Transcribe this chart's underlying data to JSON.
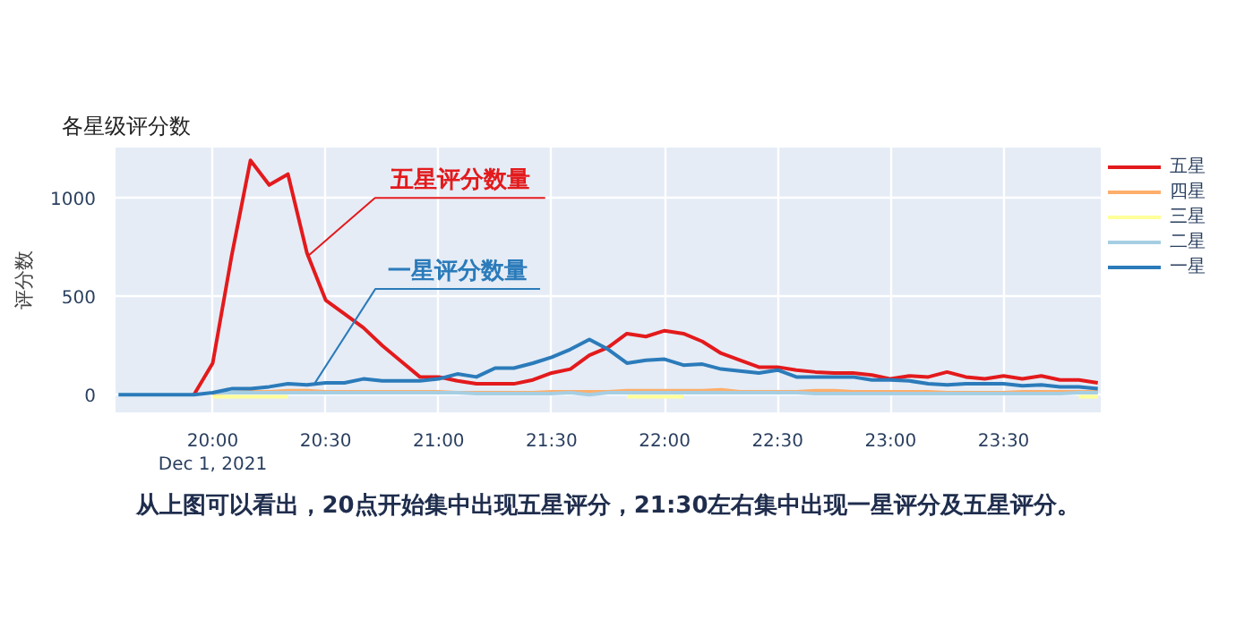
{
  "chart_data": {
    "type": "line",
    "title": "各星级评分数",
    "ylabel": "评分数",
    "xlim": [
      19.57,
      23.93
    ],
    "ylim": [
      -90,
      1255
    ],
    "xticks": [
      {
        "value": 20,
        "label": "20:00\nDec 1, 2021"
      },
      {
        "value": 20.5,
        "label": "20:30"
      },
      {
        "value": 21,
        "label": "21:00"
      },
      {
        "value": 21.5,
        "label": "21:30"
      },
      {
        "value": 22,
        "label": "22:00"
      },
      {
        "value": 22.5,
        "label": "22:30"
      },
      {
        "value": 23,
        "label": "23:00"
      },
      {
        "value": 23.5,
        "label": "23:30"
      }
    ],
    "yticks": [
      0,
      500,
      1000
    ],
    "grid": true,
    "legend": "top right",
    "marker": "none",
    "line_style": "solid",
    "x": [
      19.583,
      19.667,
      19.75,
      19.833,
      19.917,
      20.0,
      20.083,
      20.167,
      20.25,
      20.333,
      20.417,
      20.5,
      20.583,
      20.667,
      20.75,
      20.833,
      20.917,
      21.0,
      21.083,
      21.167,
      21.25,
      21.333,
      21.417,
      21.5,
      21.583,
      21.667,
      21.75,
      21.833,
      21.917,
      22.0,
      22.083,
      22.167,
      22.25,
      22.333,
      22.417,
      22.5,
      22.583,
      22.667,
      22.75,
      22.833,
      22.917,
      23.0,
      23.083,
      23.167,
      23.25,
      23.333,
      23.417,
      23.5,
      23.583,
      23.667,
      23.75,
      23.833,
      23.917
    ],
    "series": [
      {
        "name": "五星",
        "color": "#e31a1c",
        "values": [
          null,
          null,
          null,
          null,
          0,
          160,
          700,
          1190,
          1065,
          1120,
          720,
          480,
          410,
          340,
          250,
          170,
          90,
          90,
          70,
          55,
          55,
          55,
          75,
          110,
          130,
          200,
          240,
          310,
          295,
          325,
          310,
          270,
          210,
          175,
          140,
          140,
          125,
          115,
          110,
          110,
          100,
          80,
          95,
          90,
          115,
          90,
          80,
          95,
          80,
          95,
          75,
          75,
          60
        ]
      },
      {
        "name": "四星",
        "color": "#fdae6b",
        "values": [
          null,
          null,
          null,
          null,
          null,
          5,
          10,
          15,
          15,
          20,
          20,
          15,
          15,
          15,
          15,
          15,
          15,
          15,
          10,
          10,
          10,
          10,
          10,
          15,
          15,
          15,
          15,
          20,
          20,
          20,
          20,
          20,
          25,
          15,
          15,
          15,
          15,
          20,
          20,
          15,
          15,
          15,
          15,
          15,
          10,
          10,
          10,
          10,
          15,
          15,
          15,
          15,
          15
        ]
      },
      {
        "name": "三星",
        "color": "#ffff99",
        "values": [
          null,
          null,
          null,
          null,
          null,
          -10,
          -10,
          -10,
          -10,
          -10,
          null,
          null,
          null,
          null,
          null,
          null,
          null,
          null,
          null,
          null,
          null,
          null,
          null,
          null,
          null,
          null,
          null,
          -10,
          -10,
          -10,
          -10,
          null,
          null,
          null,
          null,
          null,
          null,
          null,
          null,
          null,
          null,
          null,
          null,
          null,
          null,
          null,
          null,
          null,
          null,
          null,
          null,
          -10,
          -10
        ]
      },
      {
        "name": "二星",
        "color": "#a6cee3",
        "values": [
          null,
          null,
          null,
          null,
          null,
          10,
          10,
          10,
          10,
          10,
          10,
          10,
          10,
          10,
          10,
          10,
          10,
          10,
          10,
          5,
          5,
          5,
          5,
          5,
          10,
          0,
          10,
          10,
          10,
          10,
          10,
          10,
          10,
          10,
          10,
          10,
          10,
          5,
          5,
          5,
          5,
          5,
          5,
          5,
          5,
          5,
          5,
          5,
          5,
          5,
          5,
          10,
          10
        ]
      },
      {
        "name": "一星",
        "color": "#2b7bba",
        "values": [
          0,
          0,
          0,
          0,
          0,
          10,
          30,
          30,
          40,
          55,
          50,
          60,
          60,
          80,
          70,
          70,
          70,
          80,
          105,
          90,
          135,
          135,
          160,
          190,
          230,
          280,
          230,
          160,
          175,
          180,
          150,
          155,
          130,
          120,
          110,
          125,
          90,
          90,
          90,
          90,
          75,
          75,
          70,
          55,
          50,
          55,
          55,
          55,
          45,
          50,
          40,
          40,
          30
        ]
      }
    ],
    "annotations": [
      {
        "text": "五星评分数量",
        "x": 20.417,
        "y": 700
      },
      {
        "text": "一星评分数量",
        "x": 20.45,
        "y": 55
      },
      "从上图可以看出，20点开始集中出现五星评分，21:30左右集中出现一星评分及五星评分。"
    ]
  }
}
